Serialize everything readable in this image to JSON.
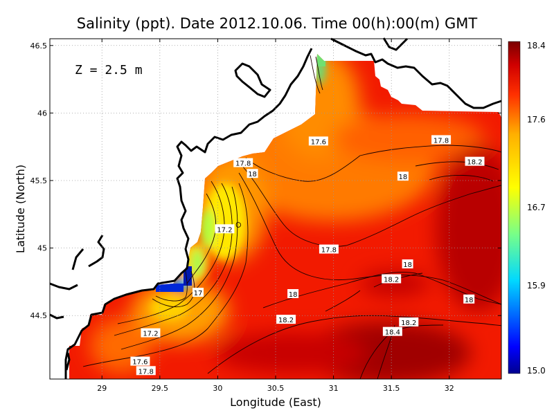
{
  "chart_data": {
    "type": "heatmap",
    "title": "Salinity (ppt). Date 2012.10.06. Time 00(h):00(m) GMT",
    "xlabel": "Longitude (East)",
    "ylabel": "Latitude (North)",
    "xlim": [
      28.55,
      32.45
    ],
    "ylim": [
      44.03,
      46.55
    ],
    "x_ticks": [
      {
        "value": 29,
        "label": "29"
      },
      {
        "value": 29.5,
        "label": "29.5"
      },
      {
        "value": 30,
        "label": "30"
      },
      {
        "value": 30.5,
        "label": "30.5"
      },
      {
        "value": 31,
        "label": "31"
      },
      {
        "value": 31.5,
        "label": "31.5"
      },
      {
        "value": 32,
        "label": "32"
      }
    ],
    "y_ticks": [
      {
        "value": 44.5,
        "label": "44.5"
      },
      {
        "value": 45,
        "label": "45"
      },
      {
        "value": 45.5,
        "label": "45.5"
      },
      {
        "value": 46,
        "label": "46"
      },
      {
        "value": 46.5,
        "label": "46.5"
      }
    ],
    "grid": true,
    "annotation": "Z = 2.5 m",
    "colorbar": {
      "position": "right",
      "min": 15.0,
      "max": 18.4,
      "tick_values": [
        18.4,
        17.6,
        16.7,
        15.9,
        15.0
      ],
      "tick_labels": [
        "18.4",
        "17.6",
        "16.7",
        "15.9",
        "15.0"
      ],
      "colors": [
        "#00008f",
        "#0000ff",
        "#00d8ff",
        "#78ff88",
        "#ffff00",
        "#ffb000",
        "#ff3000",
        "#d00000",
        "#7a0000"
      ]
    },
    "contour_labels": [
      {
        "lon": 30.87,
        "lat": 45.79,
        "text": "17.6"
      },
      {
        "lon": 31.93,
        "lat": 45.8,
        "text": "17.8"
      },
      {
        "lon": 32.22,
        "lat": 45.64,
        "text": "18.2"
      },
      {
        "lon": 30.22,
        "lat": 45.63,
        "text": "17.8"
      },
      {
        "lon": 30.3,
        "lat": 45.55,
        "text": "18"
      },
      {
        "lon": 31.6,
        "lat": 45.53,
        "text": "18"
      },
      {
        "lon": 30.06,
        "lat": 45.14,
        "text": "17.2"
      },
      {
        "lon": 30.96,
        "lat": 44.99,
        "text": "17.8"
      },
      {
        "lon": 31.64,
        "lat": 44.88,
        "text": "18"
      },
      {
        "lon": 31.5,
        "lat": 44.77,
        "text": "18.2"
      },
      {
        "lon": 29.83,
        "lat": 44.67,
        "text": "17"
      },
      {
        "lon": 30.65,
        "lat": 44.66,
        "text": "18"
      },
      {
        "lon": 32.17,
        "lat": 44.62,
        "text": "18"
      },
      {
        "lon": 30.59,
        "lat": 44.47,
        "text": "18.2"
      },
      {
        "lon": 31.65,
        "lat": 44.45,
        "text": "18.2"
      },
      {
        "lon": 29.42,
        "lat": 44.37,
        "text": "17.2"
      },
      {
        "lon": 31.51,
        "lat": 44.38,
        "text": "18.4"
      },
      {
        "lon": 29.33,
        "lat": 44.16,
        "text": "17.6"
      },
      {
        "lon": 29.38,
        "lat": 44.09,
        "text": "17.8"
      }
    ]
  }
}
